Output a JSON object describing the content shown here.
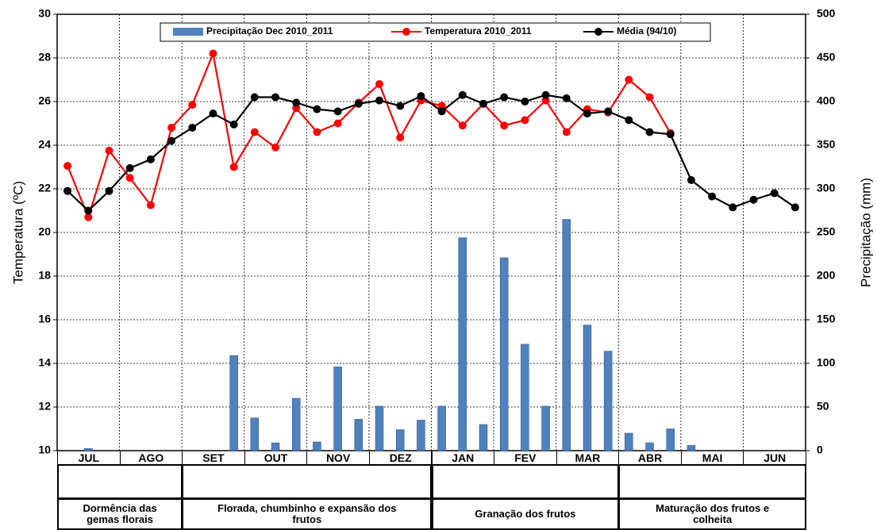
{
  "chart_data": {
    "type": "combo",
    "y_label": "Temperatura (ºC)",
    "y2_label": "Precipitação (mm)",
    "categories": [
      null,
      null,
      null,
      null,
      null,
      null,
      null,
      null,
      null,
      null,
      null,
      null,
      null,
      null,
      null,
      null,
      null,
      null,
      null,
      null,
      null,
      null,
      null,
      null,
      null,
      null,
      null,
      null,
      null,
      null,
      null,
      null,
      null,
      null,
      null,
      null
    ],
    "ylim": [
      10,
      30
    ],
    "yticks": [
      10,
      12,
      14,
      16,
      18,
      20,
      22,
      24,
      26,
      28,
      30
    ],
    "y2lim": [
      0,
      500
    ],
    "y2ticks": [
      0,
      50,
      100,
      150,
      200,
      250,
      300,
      350,
      400,
      450,
      500
    ],
    "grid": true,
    "series": [
      {
        "name": "Precipitação Dec 2010_2011",
        "type": "bar",
        "axis": "y2",
        "color": "#4f81bd",
        "values": [
          0,
          2.5,
          0,
          0,
          0,
          0,
          0,
          0,
          109,
          37.5,
          9,
          60,
          10,
          96,
          36,
          51,
          24,
          35,
          51,
          244,
          30,
          221,
          122,
          51,
          265,
          144,
          114,
          20,
          9,
          25,
          6,
          0,
          0,
          0,
          0,
          0
        ]
      },
      {
        "name": "Temperatura 2010_2011",
        "type": "line",
        "color": "#ff0000",
        "values": [
          23.05,
          20.7,
          23.75,
          22.5,
          21.25,
          24.8,
          25.85,
          28.2,
          23.0,
          24.6,
          23.9,
          25.7,
          24.6,
          25.0,
          25.95,
          26.8,
          24.35,
          26.05,
          25.8,
          24.9,
          25.9,
          24.9,
          25.15,
          26.05,
          24.6,
          25.65,
          25.5,
          27.0,
          26.2,
          24.55,
          null,
          null,
          null,
          null,
          null,
          null
        ]
      },
      {
        "name": "Média (94/10)",
        "type": "line",
        "color": "#000000",
        "values": [
          21.9,
          21.0,
          21.9,
          22.95,
          23.35,
          24.2,
          24.8,
          25.45,
          24.95,
          26.2,
          26.2,
          25.95,
          25.65,
          25.55,
          25.9,
          26.05,
          25.8,
          26.25,
          25.55,
          26.3,
          25.9,
          26.2,
          26.0,
          26.3,
          26.15,
          25.45,
          25.55,
          25.15,
          24.6,
          24.5,
          22.4,
          21.65,
          21.15,
          21.5,
          21.8,
          21.15
        ]
      }
    ]
  },
  "phenology": {
    "months": [
      "JUL",
      "AGO",
      "SET",
      "OUT",
      "NOV",
      "DEZ",
      "JAN",
      "FEV",
      "MAR",
      "ABR",
      "MAI",
      "JUN"
    ],
    "phases": [
      "Dormência das gemas florais",
      "Florada, chumbinho e expansão dos frutos",
      "Granação dos frutos",
      "Maturação dos frutos e colheita"
    ]
  }
}
